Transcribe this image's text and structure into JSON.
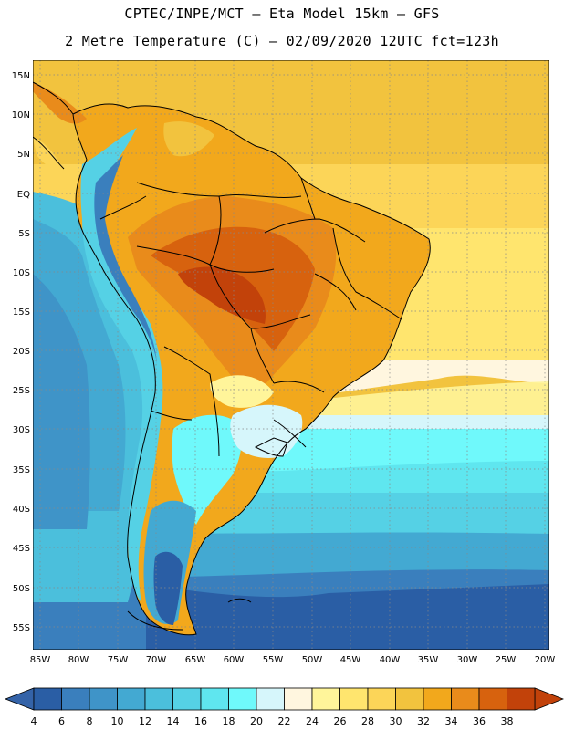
{
  "title_line1": "CPTEC/INPE/MCT –  Eta Model 15km – GFS",
  "title_line2": "2 Metre Temperature (C) – 02/09/2020 12UTC fct=123h",
  "lat_labels": [
    "15N",
    "10N",
    "5N",
    "EQ",
    "5S",
    "10S",
    "15S",
    "20S",
    "25S",
    "30S",
    "35S",
    "40S",
    "45S",
    "50S",
    "55S"
  ],
  "lon_labels": [
    "85W",
    "80W",
    "75W",
    "70W",
    "65W",
    "60W",
    "55W",
    "50W",
    "45W",
    "40W",
    "35W",
    "30W",
    "25W",
    "20W"
  ],
  "colorbar": {
    "labels": [
      "4",
      "6",
      "8",
      "10",
      "12",
      "14",
      "16",
      "18",
      "20",
      "22",
      "24",
      "26",
      "28",
      "30",
      "32",
      "34",
      "36",
      "38"
    ],
    "colors": [
      "#2a5ea5",
      "#3a7fbd",
      "#3f94c8",
      "#43a9d2",
      "#4bbfdc",
      "#55d1e5",
      "#5fe6ef",
      "#6ff9fb",
      "#d6f6fb",
      "#fff6df",
      "#fff59a",
      "#ffe56e",
      "#fcd558",
      "#f2c33e",
      "#f2a81c",
      "#e98b1b",
      "#d7620e",
      "#c2420a"
    ],
    "under_color": "#3463a8",
    "over_color": "#c2420a"
  }
}
